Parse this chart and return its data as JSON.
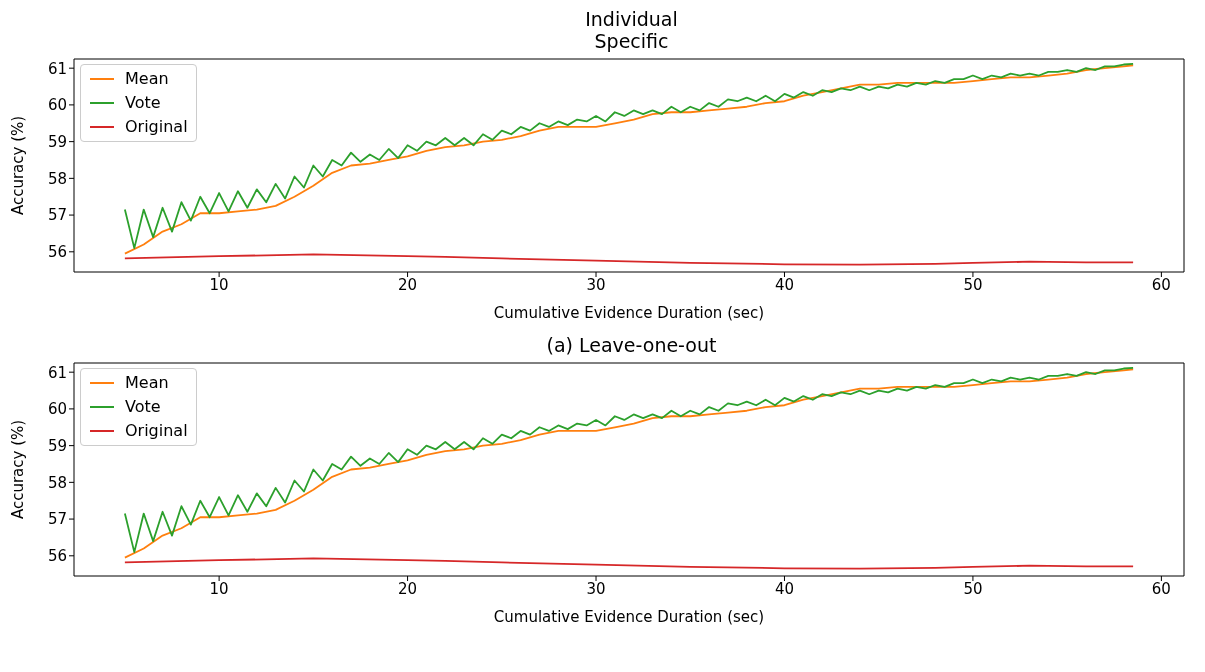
{
  "chart_data": [
    {
      "type": "line",
      "title": "Individual\nSpecific",
      "xlabel": "Cumulative Evidence Duration (sec)",
      "ylabel": "Accuracy (%)",
      "xlim": [
        2.3,
        61.2
      ],
      "ylim": [
        55.45,
        61.25
      ],
      "xticks": [
        10,
        20,
        30,
        40,
        50,
        60
      ],
      "yticks": [
        56,
        57,
        58,
        59,
        60,
        61
      ],
      "grid": false,
      "legend": "top left",
      "series": [
        {
          "name": "Mean",
          "color": "#ff7f0e",
          "x": [
            5,
            6,
            7,
            8,
            9,
            10,
            11,
            12,
            13,
            14,
            15,
            16,
            17,
            18,
            19,
            20,
            21,
            22,
            23,
            24,
            25,
            26,
            27,
            28,
            29,
            30,
            31,
            32,
            33,
            34,
            35,
            36,
            37,
            38,
            39,
            40,
            41,
            42,
            43,
            44,
            45,
            46,
            47,
            48,
            49,
            50,
            51,
            52,
            53,
            54,
            55,
            56,
            57,
            58,
            58.5
          ],
          "values": [
            55.95,
            56.2,
            56.55,
            56.75,
            57.05,
            57.05,
            57.1,
            57.15,
            57.25,
            57.5,
            57.8,
            58.15,
            58.35,
            58.4,
            58.5,
            58.6,
            58.75,
            58.85,
            58.9,
            59.0,
            59.05,
            59.15,
            59.3,
            59.4,
            59.4,
            59.4,
            59.5,
            59.6,
            59.75,
            59.8,
            59.8,
            59.85,
            59.9,
            59.95,
            60.05,
            60.1,
            60.25,
            60.35,
            60.45,
            60.55,
            60.55,
            60.6,
            60.6,
            60.6,
            60.6,
            60.65,
            60.7,
            60.75,
            60.75,
            60.8,
            60.85,
            60.95,
            61.0,
            61.05,
            61.08
          ]
        },
        {
          "name": "Vote",
          "color": "#2ca02c",
          "x": [
            5,
            5.5,
            6,
            6.5,
            7,
            7.5,
            8,
            8.5,
            9,
            9.5,
            10,
            10.5,
            11,
            11.5,
            12,
            12.5,
            13,
            13.5,
            14,
            14.5,
            15,
            15.5,
            16,
            16.5,
            17,
            17.5,
            18,
            18.5,
            19,
            19.5,
            20,
            20.5,
            21,
            21.5,
            22,
            22.5,
            23,
            23.5,
            24,
            24.5,
            25,
            25.5,
            26,
            26.5,
            27,
            27.5,
            28,
            28.5,
            29,
            29.5,
            30,
            30.5,
            31,
            31.5,
            32,
            32.5,
            33,
            33.5,
            34,
            34.5,
            35,
            35.5,
            36,
            36.5,
            37,
            37.5,
            38,
            38.5,
            39,
            39.5,
            40,
            40.5,
            41,
            41.5,
            42,
            42.5,
            43,
            43.5,
            44,
            44.5,
            45,
            45.5,
            46,
            46.5,
            47,
            47.5,
            48,
            48.5,
            49,
            49.5,
            50,
            50.5,
            51,
            51.5,
            52,
            52.5,
            53,
            53.5,
            54,
            54.5,
            55,
            55.5,
            56,
            56.5,
            57,
            57.5,
            58,
            58.5
          ],
          "values": [
            57.15,
            56.1,
            57.15,
            56.4,
            57.2,
            56.55,
            57.35,
            56.85,
            57.5,
            57.05,
            57.6,
            57.1,
            57.65,
            57.2,
            57.7,
            57.35,
            57.85,
            57.45,
            58.05,
            57.75,
            58.35,
            58.05,
            58.5,
            58.35,
            58.7,
            58.45,
            58.65,
            58.5,
            58.8,
            58.55,
            58.9,
            58.75,
            59.0,
            58.9,
            59.1,
            58.9,
            59.1,
            58.9,
            59.2,
            59.05,
            59.3,
            59.2,
            59.4,
            59.3,
            59.5,
            59.4,
            59.55,
            59.45,
            59.6,
            59.55,
            59.7,
            59.55,
            59.8,
            59.7,
            59.85,
            59.75,
            59.85,
            59.75,
            59.95,
            59.8,
            59.95,
            59.85,
            60.05,
            59.95,
            60.15,
            60.1,
            60.2,
            60.1,
            60.25,
            60.1,
            60.3,
            60.2,
            60.35,
            60.25,
            60.4,
            60.35,
            60.45,
            60.4,
            60.5,
            60.4,
            60.5,
            60.45,
            60.55,
            60.5,
            60.6,
            60.55,
            60.65,
            60.6,
            60.7,
            60.7,
            60.8,
            60.7,
            60.8,
            60.75,
            60.85,
            60.8,
            60.85,
            60.8,
            60.9,
            60.9,
            60.95,
            60.9,
            61.0,
            60.95,
            61.05,
            61.05,
            61.1,
            61.12
          ]
        },
        {
          "name": "Original",
          "color": "#d62728",
          "x": [
            5,
            10,
            15,
            20,
            22,
            25,
            30,
            35,
            40,
            44,
            48,
            50,
            53,
            56,
            58.5
          ],
          "values": [
            55.82,
            55.88,
            55.93,
            55.88,
            55.86,
            55.82,
            55.76,
            55.7,
            55.66,
            55.65,
            55.67,
            55.7,
            55.73,
            55.71,
            55.71
          ]
        }
      ]
    },
    {
      "type": "line",
      "title": "(a) Leave-one-out",
      "xlabel": "Cumulative Evidence Duration (sec)",
      "ylabel": "Accuracy (%)",
      "xlim": [
        2.3,
        61.2
      ],
      "ylim": [
        55.45,
        61.25
      ],
      "xticks": [
        10,
        20,
        30,
        40,
        50,
        60
      ],
      "yticks": [
        56,
        57,
        58,
        59,
        60,
        61
      ],
      "grid": false,
      "legend": "top left",
      "series": [
        {
          "name": "Mean",
          "color": "#ff7f0e",
          "x": [
            5,
            6,
            7,
            8,
            9,
            10,
            11,
            12,
            13,
            14,
            15,
            16,
            17,
            18,
            19,
            20,
            21,
            22,
            23,
            24,
            25,
            26,
            27,
            28,
            29,
            30,
            31,
            32,
            33,
            34,
            35,
            36,
            37,
            38,
            39,
            40,
            41,
            42,
            43,
            44,
            45,
            46,
            47,
            48,
            49,
            50,
            51,
            52,
            53,
            54,
            55,
            56,
            57,
            58,
            58.5
          ],
          "values": [
            55.95,
            56.2,
            56.55,
            56.75,
            57.05,
            57.05,
            57.1,
            57.15,
            57.25,
            57.5,
            57.8,
            58.15,
            58.35,
            58.4,
            58.5,
            58.6,
            58.75,
            58.85,
            58.9,
            59.0,
            59.05,
            59.15,
            59.3,
            59.4,
            59.4,
            59.4,
            59.5,
            59.6,
            59.75,
            59.8,
            59.8,
            59.85,
            59.9,
            59.95,
            60.05,
            60.1,
            60.25,
            60.35,
            60.45,
            60.55,
            60.55,
            60.6,
            60.6,
            60.6,
            60.6,
            60.65,
            60.7,
            60.75,
            60.75,
            60.8,
            60.85,
            60.95,
            61.0,
            61.05,
            61.08
          ]
        },
        {
          "name": "Vote",
          "color": "#2ca02c",
          "x": [
            5,
            5.5,
            6,
            6.5,
            7,
            7.5,
            8,
            8.5,
            9,
            9.5,
            10,
            10.5,
            11,
            11.5,
            12,
            12.5,
            13,
            13.5,
            14,
            14.5,
            15,
            15.5,
            16,
            16.5,
            17,
            17.5,
            18,
            18.5,
            19,
            19.5,
            20,
            20.5,
            21,
            21.5,
            22,
            22.5,
            23,
            23.5,
            24,
            24.5,
            25,
            25.5,
            26,
            26.5,
            27,
            27.5,
            28,
            28.5,
            29,
            29.5,
            30,
            30.5,
            31,
            31.5,
            32,
            32.5,
            33,
            33.5,
            34,
            34.5,
            35,
            35.5,
            36,
            36.5,
            37,
            37.5,
            38,
            38.5,
            39,
            39.5,
            40,
            40.5,
            41,
            41.5,
            42,
            42.5,
            43,
            43.5,
            44,
            44.5,
            45,
            45.5,
            46,
            46.5,
            47,
            47.5,
            48,
            48.5,
            49,
            49.5,
            50,
            50.5,
            51,
            51.5,
            52,
            52.5,
            53,
            53.5,
            54,
            54.5,
            55,
            55.5,
            56,
            56.5,
            57,
            57.5,
            58,
            58.5
          ],
          "values": [
            57.15,
            56.1,
            57.15,
            56.4,
            57.2,
            56.55,
            57.35,
            56.85,
            57.5,
            57.05,
            57.6,
            57.1,
            57.65,
            57.2,
            57.7,
            57.35,
            57.85,
            57.45,
            58.05,
            57.75,
            58.35,
            58.05,
            58.5,
            58.35,
            58.7,
            58.45,
            58.65,
            58.5,
            58.8,
            58.55,
            58.9,
            58.75,
            59.0,
            58.9,
            59.1,
            58.9,
            59.1,
            58.9,
            59.2,
            59.05,
            59.3,
            59.2,
            59.4,
            59.3,
            59.5,
            59.4,
            59.55,
            59.45,
            59.6,
            59.55,
            59.7,
            59.55,
            59.8,
            59.7,
            59.85,
            59.75,
            59.85,
            59.75,
            59.95,
            59.8,
            59.95,
            59.85,
            60.05,
            59.95,
            60.15,
            60.1,
            60.2,
            60.1,
            60.25,
            60.1,
            60.3,
            60.2,
            60.35,
            60.25,
            60.4,
            60.35,
            60.45,
            60.4,
            60.5,
            60.4,
            60.5,
            60.45,
            60.55,
            60.5,
            60.6,
            60.55,
            60.65,
            60.6,
            60.7,
            60.7,
            60.8,
            60.7,
            60.8,
            60.75,
            60.85,
            60.8,
            60.85,
            60.8,
            60.9,
            60.9,
            60.95,
            60.9,
            61.0,
            60.95,
            61.05,
            61.05,
            61.1,
            61.12
          ]
        },
        {
          "name": "Original",
          "color": "#d62728",
          "x": [
            5,
            10,
            15,
            20,
            22,
            25,
            30,
            35,
            40,
            44,
            48,
            50,
            53,
            56,
            58.5
          ],
          "values": [
            55.82,
            55.88,
            55.93,
            55.88,
            55.86,
            55.82,
            55.76,
            55.7,
            55.66,
            55.65,
            55.67,
            55.7,
            55.73,
            55.71,
            55.71
          ]
        }
      ]
    }
  ]
}
